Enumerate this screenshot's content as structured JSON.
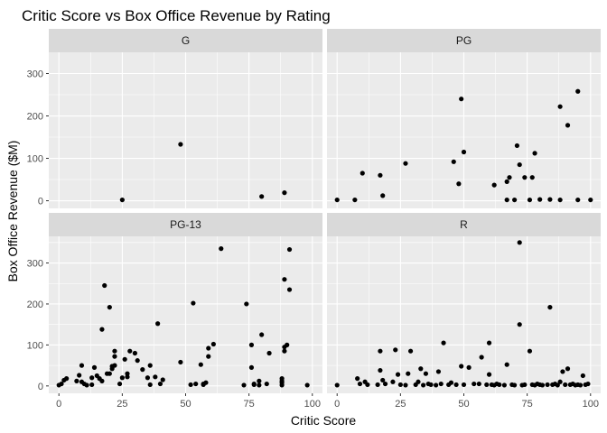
{
  "chart_data": {
    "type": "scatter",
    "title": "Critic Score vs Box Office Revenue by Rating",
    "xlabel": "Critic Score",
    "ylabel": "Box Office Revenue ($M)",
    "xlim": [
      -4,
      104
    ],
    "x_ticks": [
      0,
      25,
      50,
      75,
      100
    ],
    "point_color": "#000000",
    "panel_background": "#ebebeb",
    "strip_background": "#d9d9d9",
    "grid": true,
    "rows": [
      {
        "ylim": [
          -18,
          350
        ],
        "y_ticks": [
          0,
          100,
          200,
          300
        ]
      },
      {
        "ylim": [
          -18,
          365
        ],
        "y_ticks": [
          0,
          100,
          200,
          300
        ]
      }
    ],
    "panels": [
      {
        "name": "G",
        "points": [
          [
            25,
            2
          ],
          [
            48,
            133
          ],
          [
            80,
            10
          ],
          [
            89,
            19
          ]
        ]
      },
      {
        "name": "PG",
        "points": [
          [
            0,
            2
          ],
          [
            7,
            2
          ],
          [
            10,
            65
          ],
          [
            17,
            60
          ],
          [
            18,
            12
          ],
          [
            27,
            88
          ],
          [
            46,
            92
          ],
          [
            48,
            40
          ],
          [
            49,
            240
          ],
          [
            50,
            115
          ],
          [
            62,
            37
          ],
          [
            67,
            45
          ],
          [
            67,
            2
          ],
          [
            68,
            55
          ],
          [
            70,
            2
          ],
          [
            71,
            130
          ],
          [
            72,
            85
          ],
          [
            74,
            55
          ],
          [
            76,
            2
          ],
          [
            77,
            55
          ],
          [
            78,
            112
          ],
          [
            80,
            3
          ],
          [
            84,
            3
          ],
          [
            88,
            222
          ],
          [
            88,
            2
          ],
          [
            91,
            178
          ],
          [
            95,
            258
          ],
          [
            95,
            2
          ],
          [
            100,
            2
          ]
        ]
      },
      {
        "name": "PG-13",
        "points": [
          [
            0,
            2
          ],
          [
            1,
            5
          ],
          [
            2,
            14
          ],
          [
            3,
            18
          ],
          [
            7,
            12
          ],
          [
            8,
            26
          ],
          [
            9,
            10
          ],
          [
            9,
            50
          ],
          [
            10,
            5
          ],
          [
            11,
            2
          ],
          [
            13,
            20
          ],
          [
            13,
            3
          ],
          [
            14,
            45
          ],
          [
            15,
            25
          ],
          [
            16,
            18
          ],
          [
            17,
            12
          ],
          [
            17,
            138
          ],
          [
            18,
            245
          ],
          [
            19,
            30
          ],
          [
            20,
            30
          ],
          [
            20,
            192
          ],
          [
            21,
            42
          ],
          [
            21,
            48
          ],
          [
            22,
            50
          ],
          [
            22,
            72
          ],
          [
            22,
            85
          ],
          [
            24,
            5
          ],
          [
            25,
            20
          ],
          [
            26,
            65
          ],
          [
            27,
            30
          ],
          [
            27,
            22
          ],
          [
            28,
            85
          ],
          [
            30,
            80
          ],
          [
            31,
            62
          ],
          [
            33,
            40
          ],
          [
            35,
            20
          ],
          [
            36,
            3
          ],
          [
            36,
            50
          ],
          [
            38,
            22
          ],
          [
            39,
            152
          ],
          [
            40,
            5
          ],
          [
            41,
            15
          ],
          [
            48,
            58
          ],
          [
            52,
            3
          ],
          [
            53,
            202
          ],
          [
            54,
            5
          ],
          [
            56,
            52
          ],
          [
            57,
            5
          ],
          [
            57,
            3
          ],
          [
            58,
            8
          ],
          [
            59,
            72
          ],
          [
            59,
            92
          ],
          [
            61,
            102
          ],
          [
            64,
            335
          ],
          [
            73,
            2
          ],
          [
            74,
            200
          ],
          [
            76,
            100
          ],
          [
            76,
            45
          ],
          [
            77,
            3
          ],
          [
            77,
            5
          ],
          [
            79,
            2
          ],
          [
            79,
            12
          ],
          [
            80,
            125
          ],
          [
            82,
            5
          ],
          [
            83,
            80
          ],
          [
            88,
            12
          ],
          [
            88,
            2
          ],
          [
            88,
            8
          ],
          [
            88,
            18
          ],
          [
            89,
            85
          ],
          [
            89,
            95
          ],
          [
            89,
            260
          ],
          [
            90,
            100
          ],
          [
            91,
            235
          ],
          [
            91,
            333
          ],
          [
            98,
            2
          ]
        ]
      },
      {
        "name": "R",
        "points": [
          [
            0,
            2
          ],
          [
            8,
            18
          ],
          [
            9,
            5
          ],
          [
            11,
            10
          ],
          [
            12,
            3
          ],
          [
            16,
            3
          ],
          [
            17,
            38
          ],
          [
            17,
            85
          ],
          [
            18,
            14
          ],
          [
            19,
            5
          ],
          [
            22,
            10
          ],
          [
            23,
            88
          ],
          [
            24,
            28
          ],
          [
            25,
            3
          ],
          [
            27,
            2
          ],
          [
            28,
            30
          ],
          [
            29,
            85
          ],
          [
            31,
            3
          ],
          [
            32,
            10
          ],
          [
            33,
            42
          ],
          [
            34,
            2
          ],
          [
            35,
            30
          ],
          [
            36,
            5
          ],
          [
            37,
            3
          ],
          [
            39,
            2
          ],
          [
            40,
            35
          ],
          [
            41,
            5
          ],
          [
            42,
            105
          ],
          [
            44,
            3
          ],
          [
            45,
            8
          ],
          [
            47,
            3
          ],
          [
            49,
            48
          ],
          [
            50,
            3
          ],
          [
            52,
            45
          ],
          [
            54,
            5
          ],
          [
            56,
            5
          ],
          [
            57,
            70
          ],
          [
            59,
            3
          ],
          [
            60,
            28
          ],
          [
            60,
            105
          ],
          [
            61,
            3
          ],
          [
            62,
            2
          ],
          [
            63,
            5
          ],
          [
            64,
            3
          ],
          [
            66,
            2
          ],
          [
            67,
            52
          ],
          [
            69,
            3
          ],
          [
            70,
            2
          ],
          [
            72,
            150
          ],
          [
            72,
            350
          ],
          [
            73,
            2
          ],
          [
            74,
            3
          ],
          [
            76,
            85
          ],
          [
            77,
            3
          ],
          [
            78,
            2
          ],
          [
            79,
            5
          ],
          [
            80,
            3
          ],
          [
            81,
            2
          ],
          [
            83,
            3
          ],
          [
            84,
            192
          ],
          [
            85,
            3
          ],
          [
            86,
            5
          ],
          [
            87,
            2
          ],
          [
            88,
            10
          ],
          [
            89,
            35
          ],
          [
            90,
            3
          ],
          [
            91,
            42
          ],
          [
            92,
            3
          ],
          [
            93,
            5
          ],
          [
            94,
            2
          ],
          [
            95,
            3
          ],
          [
            96,
            2
          ],
          [
            97,
            25
          ],
          [
            98,
            3
          ],
          [
            99,
            5
          ]
        ]
      }
    ]
  }
}
